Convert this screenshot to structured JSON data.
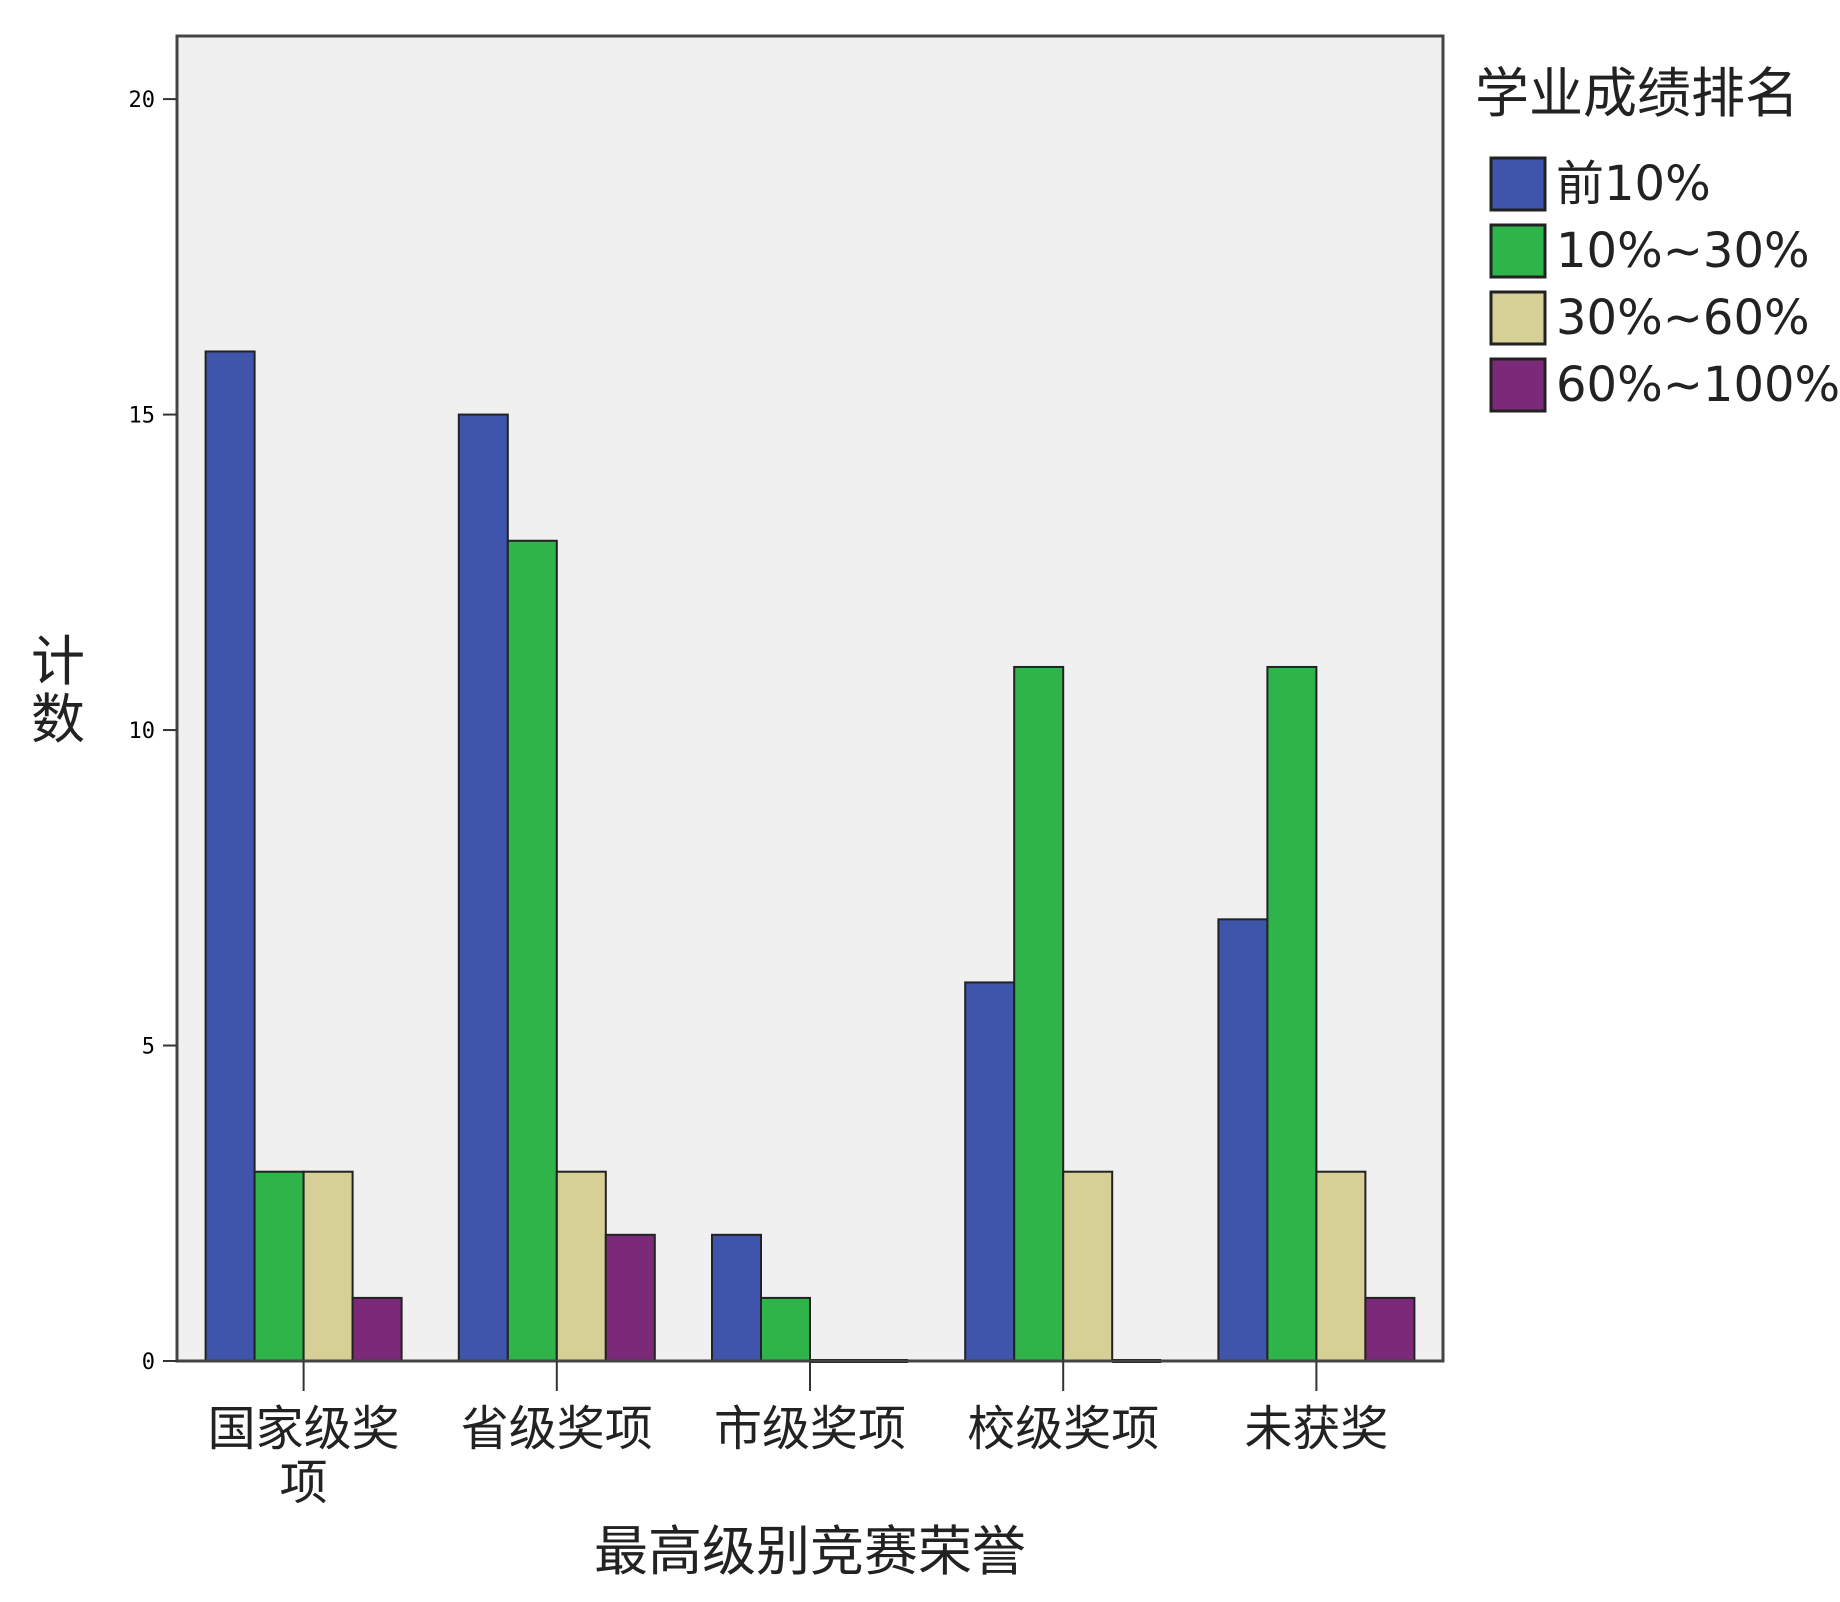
{
  "chart_data": {
    "type": "bar",
    "title": "",
    "xlabel": "最高级别竞赛荣誉",
    "ylabel": "计数",
    "ylim": [
      0,
      21
    ],
    "yticks": [
      "0",
      "5",
      "10",
      "15",
      "20"
    ],
    "ytick_values": [
      0,
      5,
      10,
      15,
      20
    ],
    "grid": false,
    "legend_title": "学业成绩排名",
    "legend_position": "right",
    "categories": [
      "国家级奖项",
      "省级奖项",
      "市级奖项",
      "校级奖项",
      "未获奖"
    ],
    "series": [
      {
        "name": "前10%",
        "color": "#3E55AB",
        "values": [
          16,
          15,
          2,
          6,
          7
        ]
      },
      {
        "name": "10%~30%",
        "color": "#2EB448",
        "values": [
          3,
          13,
          1,
          11,
          11
        ]
      },
      {
        "name": "30%~60%",
        "color": "#D6D096",
        "values": [
          3,
          3,
          0,
          3,
          3
        ]
      },
      {
        "name": "60%~100%",
        "color": "#7B2A79",
        "values": [
          1,
          2,
          0,
          0,
          1
        ]
      }
    ],
    "plot_background": "#F0F0F0"
  }
}
